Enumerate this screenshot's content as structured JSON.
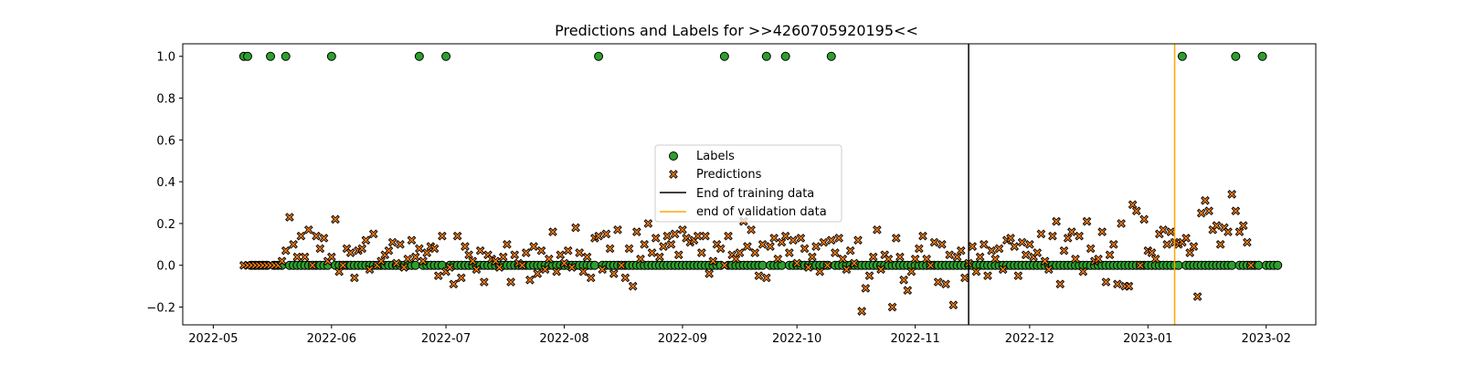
{
  "chart_data": {
    "type": "scatter",
    "title": "Predictions and Labels for >>4260705920195<<",
    "xlabel": "",
    "ylabel": "",
    "x_range": [
      "2022-04-23",
      "2023-02-14"
    ],
    "ylim": [
      -0.285,
      1.06
    ],
    "x_ticks": [
      "2022-05",
      "2022-06",
      "2022-07",
      "2022-08",
      "2022-09",
      "2022-10",
      "2022-11",
      "2022-12",
      "2023-01",
      "2023-02"
    ],
    "x_tick_dates": [
      "2022-05-01",
      "2022-06-01",
      "2022-07-01",
      "2022-08-01",
      "2022-09-01",
      "2022-10-01",
      "2022-11-01",
      "2022-12-01",
      "2023-01-01",
      "2023-02-01"
    ],
    "y_ticks": [
      -0.2,
      0.0,
      0.2,
      0.4,
      0.6,
      0.8,
      1.0
    ],
    "y_tick_labels": [
      "−0.2",
      "0.0",
      "0.2",
      "0.4",
      "0.6",
      "0.8",
      "1.0"
    ],
    "grid": false,
    "legend_position": "center",
    "legend": [
      {
        "label": "Labels",
        "kind": "circle"
      },
      {
        "label": "Predictions",
        "kind": "cross"
      },
      {
        "label": "End of training data",
        "kind": "line-black"
      },
      {
        "label": "end of validation data",
        "kind": "line-orange"
      }
    ],
    "colors": {
      "labels": "#2ca02c",
      "predictions": "#ff7f0e",
      "training_line": "#000000",
      "validation_line": "#ffa500",
      "marker_edge": "#000000"
    },
    "vlines": [
      {
        "name": "End of training data",
        "date": "2022-11-15"
      },
      {
        "name": "end of validation data",
        "date": "2023-01-08"
      }
    ],
    "series": [
      {
        "name": "Labels",
        "start_date": "2022-05-09",
        "end_date": "2023-02-04",
        "positive_dates": [
          "2022-05-09",
          "2022-05-10",
          "2022-05-16",
          "2022-05-20",
          "2022-06-01",
          "2022-06-24",
          "2022-07-01",
          "2022-08-10",
          "2022-09-12",
          "2022-09-23",
          "2022-09-28",
          "2022-10-10",
          "2023-01-10",
          "2023-01-24",
          "2023-01-31"
        ],
        "positive_value": 1.0,
        "other_value": 0.0
      },
      {
        "name": "Predictions",
        "start_date": "2022-05-09",
        "values": [
          0.0,
          0.0,
          0.0,
          0.0,
          0.0,
          0.0,
          0.0,
          0.0,
          0.0,
          0.0,
          0.02,
          0.07,
          0.23,
          0.1,
          0.04,
          0.14,
          0.04,
          0.17,
          0.0,
          0.14,
          0.08,
          0.13,
          0.02,
          0.04,
          0.22,
          -0.03,
          0.0,
          0.08,
          0.06,
          -0.06,
          0.07,
          0.08,
          0.12,
          -0.02,
          0.15,
          0.0,
          0.02,
          0.05,
          0.07,
          0.11,
          0.01,
          0.1,
          -0.01,
          0.03,
          0.12,
          0.04,
          0.08,
          0.02,
          0.06,
          0.09,
          0.08,
          -0.05,
          0.14,
          -0.03,
          -0.01,
          -0.09,
          0.14,
          -0.06,
          0.09,
          0.05,
          0.02,
          -0.02,
          0.07,
          -0.08,
          0.05,
          0.03,
          0.02,
          -0.01,
          0.04,
          0.1,
          -0.08,
          0.05,
          0.01,
          0.0,
          0.06,
          -0.07,
          0.09,
          -0.04,
          0.07,
          -0.02,
          0.03,
          0.16,
          -0.03,
          0.05,
          0.01,
          0.07,
          -0.01,
          0.18,
          0.06,
          -0.03,
          0.04,
          -0.06,
          0.13,
          0.14,
          -0.02,
          0.15,
          0.08,
          -0.04,
          0.17,
          0.0,
          -0.06,
          0.08,
          -0.1,
          0.16,
          0.03,
          0.1,
          0.2,
          0.06,
          0.13,
          0.04,
          0.09,
          0.14,
          0.1,
          0.15,
          0.05,
          0.17,
          0.13,
          0.11,
          0.12,
          0.14,
          0.06,
          0.14,
          -0.04,
          0.02,
          0.1,
          0.08,
          0.0,
          0.14,
          0.05,
          0.03,
          0.06,
          0.21,
          0.09,
          0.17,
          0.06,
          -0.05,
          0.1,
          -0.06,
          0.09,
          0.13,
          0.03,
          0.11,
          0.14,
          0.06,
          0.12,
          0.01,
          0.13,
          0.08,
          -0.01,
          0.04,
          0.09,
          -0.03,
          0.11,
          0.0,
          0.12,
          0.06,
          0.13,
          0.03,
          -0.02,
          0.07,
          0.01,
          0.12,
          -0.22,
          -0.11,
          -0.05,
          0.04,
          0.17,
          -0.02,
          0.05,
          0.03,
          -0.2,
          0.13,
          0.04,
          -0.07,
          -0.12,
          -0.03,
          0.03,
          0.08,
          0.14,
          0.03,
          0.0,
          0.11,
          -0.08,
          0.1,
          -0.09,
          0.05,
          -0.19,
          0.04,
          0.07,
          -0.06,
          0.01,
          0.09,
          -0.03,
          0.04,
          0.1,
          -0.05,
          0.07,
          0.03,
          0.08,
          -0.02,
          0.12,
          0.13,
          0.09,
          -0.05,
          0.11,
          0.05,
          0.1,
          0.04,
          0.06,
          0.15,
          0.02,
          -0.02,
          0.14,
          0.21,
          -0.09,
          0.07,
          0.13,
          0.16,
          0.03,
          0.14,
          -0.03,
          0.21,
          0.08,
          0.02,
          0.03,
          0.16,
          -0.08,
          0.05,
          0.1,
          -0.09,
          0.2,
          -0.1,
          -0.1,
          0.29,
          0.26,
          0.0,
          0.22,
          0.07,
          0.06,
          0.03,
          0.15,
          0.17,
          0.1,
          0.16,
          0.11,
          0.1,
          0.11,
          0.13,
          0.06,
          0.09,
          -0.15,
          0.25,
          0.31,
          0.26,
          0.17,
          0.19,
          0.1,
          0.18,
          0.16,
          0.34,
          0.26,
          0.16,
          0.19,
          0.11,
          0.0
        ]
      }
    ]
  }
}
